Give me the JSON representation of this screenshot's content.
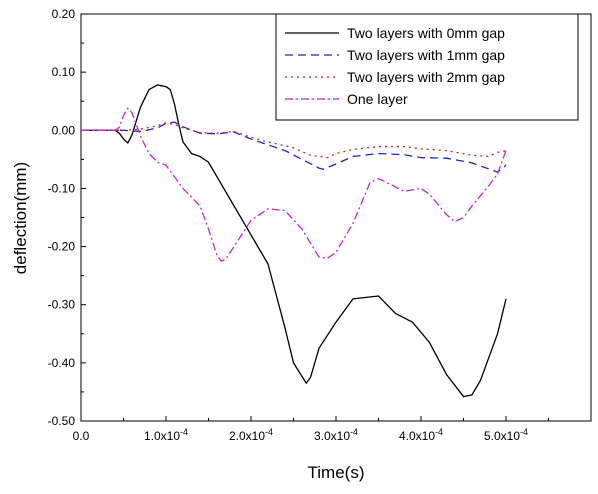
{
  "chart_data": {
    "type": "line",
    "title": "",
    "xlabel": "Time(s)",
    "ylabel": "deflection(mm)",
    "xlim": [
      0,
      0.0006
    ],
    "ylim": [
      -0.5,
      0.2
    ],
    "grid": false,
    "legend_position": "top-right",
    "x_tick_values": [
      0,
      0.0001,
      0.0002,
      0.0003,
      0.0004,
      0.0005
    ],
    "x_ticks": [
      {
        "base": "0.0",
        "exp": ""
      },
      {
        "base": "1.0x10",
        "exp": "-4"
      },
      {
        "base": "2.0x10",
        "exp": "-4"
      },
      {
        "base": "3.0x10",
        "exp": "-4"
      },
      {
        "base": "4.0x10",
        "exp": "-4"
      },
      {
        "base": "5.0x10",
        "exp": "-4"
      }
    ],
    "y_tick_values": [
      -0.5,
      -0.4,
      -0.3,
      -0.2,
      -0.1,
      0.0,
      0.1,
      0.2
    ],
    "y_ticks": [
      "-0.50",
      "-0.40",
      "-0.30",
      "-0.20",
      "-0.10",
      "0.00",
      "0.10",
      "0.20"
    ],
    "series": [
      {
        "name": "Two layers with 0mm gap",
        "color": "#000000",
        "dash": "solid",
        "points": [
          [
            0,
            0
          ],
          [
            4e-05,
            0
          ],
          [
            4.5e-05,
            -0.005
          ],
          [
            5e-05,
            -0.015
          ],
          [
            5.5e-05,
            -0.022
          ],
          [
            6e-05,
            -0.008
          ],
          [
            7e-05,
            0.04
          ],
          [
            8e-05,
            0.07
          ],
          [
            9e-05,
            0.078
          ],
          [
            0.0001,
            0.075
          ],
          [
            0.000105,
            0.07
          ],
          [
            0.00011,
            0.045
          ],
          [
            0.000115,
            0.01
          ],
          [
            0.00012,
            -0.02
          ],
          [
            0.00013,
            -0.04
          ],
          [
            0.00014,
            -0.045
          ],
          [
            0.00015,
            -0.055
          ],
          [
            0.00016,
            -0.08
          ],
          [
            0.00018,
            -0.13
          ],
          [
            0.0002,
            -0.18
          ],
          [
            0.00022,
            -0.23
          ],
          [
            0.00024,
            -0.34
          ],
          [
            0.00025,
            -0.4
          ],
          [
            0.000265,
            -0.435
          ],
          [
            0.00027,
            -0.425
          ],
          [
            0.00028,
            -0.375
          ],
          [
            0.0003,
            -0.33
          ],
          [
            0.00032,
            -0.29
          ],
          [
            0.00035,
            -0.285
          ],
          [
            0.00037,
            -0.315
          ],
          [
            0.00039,
            -0.33
          ],
          [
            0.00041,
            -0.365
          ],
          [
            0.00043,
            -0.42
          ],
          [
            0.00045,
            -0.458
          ],
          [
            0.00046,
            -0.455
          ],
          [
            0.00047,
            -0.43
          ],
          [
            0.00049,
            -0.35
          ],
          [
            0.0005,
            -0.29
          ]
        ]
      },
      {
        "name": "Two layers with 1mm gap",
        "color": "#2222cc",
        "dash": "8,5",
        "points": [
          [
            0,
            0
          ],
          [
            5e-05,
            0
          ],
          [
            7e-05,
            -0.002
          ],
          [
            9e-05,
            0.004
          ],
          [
            0.0001,
            0.012
          ],
          [
            0.00011,
            0.014
          ],
          [
            0.00012,
            0.006
          ],
          [
            0.00014,
            -0.005
          ],
          [
            0.00016,
            -0.006
          ],
          [
            0.00018,
            -0.003
          ],
          [
            0.0002,
            -0.015
          ],
          [
            0.00022,
            -0.025
          ],
          [
            0.00024,
            -0.035
          ],
          [
            0.00026,
            -0.05
          ],
          [
            0.00028,
            -0.065
          ],
          [
            0.000285,
            -0.067
          ],
          [
            0.0003,
            -0.058
          ],
          [
            0.00032,
            -0.045
          ],
          [
            0.00035,
            -0.04
          ],
          [
            0.00038,
            -0.042
          ],
          [
            0.0004,
            -0.047
          ],
          [
            0.00043,
            -0.048
          ],
          [
            0.00046,
            -0.056
          ],
          [
            0.00049,
            -0.072
          ],
          [
            0.0005,
            -0.06
          ]
        ]
      },
      {
        "name": "Two layers with 2mm gap",
        "color": "#cc2222",
        "dash": "2,4",
        "points": [
          [
            0,
            0
          ],
          [
            5e-05,
            0
          ],
          [
            7e-05,
            0.002
          ],
          [
            9e-05,
            0.008
          ],
          [
            0.0001,
            0.013
          ],
          [
            0.00011,
            0.01
          ],
          [
            0.00012,
            0.004
          ],
          [
            0.00014,
            -0.004
          ],
          [
            0.00016,
            -0.005
          ],
          [
            0.00018,
            -0.002
          ],
          [
            0.0002,
            -0.012
          ],
          [
            0.00022,
            -0.02
          ],
          [
            0.00025,
            -0.03
          ],
          [
            0.00027,
            -0.043
          ],
          [
            0.00029,
            -0.047
          ],
          [
            0.0003,
            -0.04
          ],
          [
            0.00032,
            -0.033
          ],
          [
            0.00035,
            -0.028
          ],
          [
            0.00038,
            -0.028
          ],
          [
            0.0004,
            -0.032
          ],
          [
            0.00043,
            -0.035
          ],
          [
            0.00046,
            -0.043
          ],
          [
            0.00048,
            -0.045
          ],
          [
            0.00049,
            -0.038
          ],
          [
            0.0005,
            -0.035
          ]
        ]
      },
      {
        "name": "One layer",
        "color": "#cc22cc",
        "dash": "8,3,2,3",
        "points": [
          [
            0,
            0
          ],
          [
            4e-05,
            0
          ],
          [
            4.5e-05,
            0.005
          ],
          [
            5e-05,
            0.025
          ],
          [
            5.5e-05,
            0.038
          ],
          [
            6e-05,
            0.03
          ],
          [
            6.5e-05,
            0.01
          ],
          [
            7e-05,
            -0.01
          ],
          [
            8e-05,
            -0.04
          ],
          [
            9e-05,
            -0.055
          ],
          [
            0.0001,
            -0.06
          ],
          [
            0.00011,
            -0.08
          ],
          [
            0.00012,
            -0.1
          ],
          [
            0.00013,
            -0.115
          ],
          [
            0.00014,
            -0.13
          ],
          [
            0.00015,
            -0.17
          ],
          [
            0.00016,
            -0.215
          ],
          [
            0.000165,
            -0.225
          ],
          [
            0.00017,
            -0.222
          ],
          [
            0.00018,
            -0.2
          ],
          [
            0.0002,
            -0.155
          ],
          [
            0.00022,
            -0.135
          ],
          [
            0.00024,
            -0.138
          ],
          [
            0.00026,
            -0.17
          ],
          [
            0.00028,
            -0.218
          ],
          [
            0.00029,
            -0.22
          ],
          [
            0.0003,
            -0.21
          ],
          [
            0.00032,
            -0.16
          ],
          [
            0.00034,
            -0.09
          ],
          [
            0.00035,
            -0.083
          ],
          [
            0.00036,
            -0.09
          ],
          [
            0.00038,
            -0.105
          ],
          [
            0.0004,
            -0.1
          ],
          [
            0.00041,
            -0.11
          ],
          [
            0.00043,
            -0.145
          ],
          [
            0.00044,
            -0.157
          ],
          [
            0.00045,
            -0.15
          ],
          [
            0.00046,
            -0.13
          ],
          [
            0.00048,
            -0.095
          ],
          [
            0.00049,
            -0.075
          ],
          [
            0.0005,
            -0.035
          ]
        ]
      }
    ]
  }
}
